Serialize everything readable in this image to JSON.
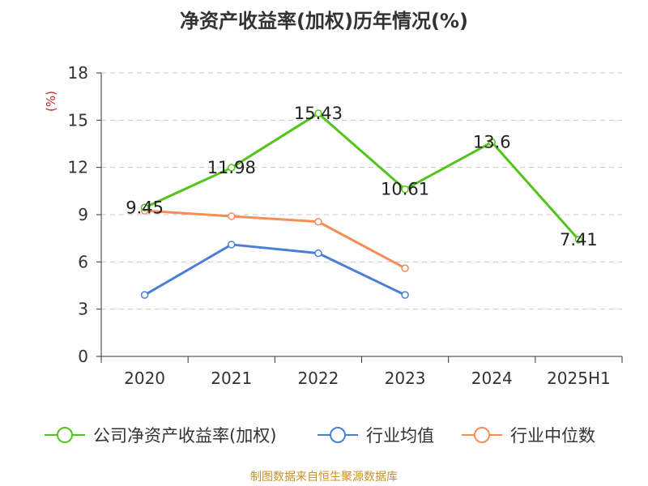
{
  "title": "净资产收益率(加权)历年情况(%)",
  "footer": {
    "text": "制图数据来自恒生聚源数据库",
    "color": "#c8902c"
  },
  "chart_data": {
    "type": "line",
    "title": "净资产收益率(加权)历年情况(%)",
    "ylabel": "(%)",
    "ylim": [
      0,
      18
    ],
    "yticks": [
      0,
      3,
      6,
      9,
      12,
      15,
      18
    ],
    "categories": [
      "2020",
      "2021",
      "2022",
      "2023",
      "2024",
      "2025H1"
    ],
    "grid": true,
    "legend_position": "bottom",
    "series": [
      {
        "name": "公司净资产收益率(加权)",
        "color": "#52c41a",
        "values": [
          9.45,
          11.98,
          15.43,
          10.61,
          13.6,
          7.41
        ],
        "labels": [
          "9.45",
          "11.98",
          "15.43",
          "10.61",
          "13.6",
          "7.41"
        ],
        "show_labels": true
      },
      {
        "name": "行业均值",
        "color": "#4a7fd8",
        "values": [
          3.9,
          7.1,
          6.55,
          3.9,
          null,
          null
        ],
        "show_labels": false
      },
      {
        "name": "行业中位数",
        "color": "#f58d56",
        "values": [
          9.25,
          8.9,
          8.55,
          5.6,
          null,
          null
        ],
        "show_labels": false
      }
    ]
  }
}
